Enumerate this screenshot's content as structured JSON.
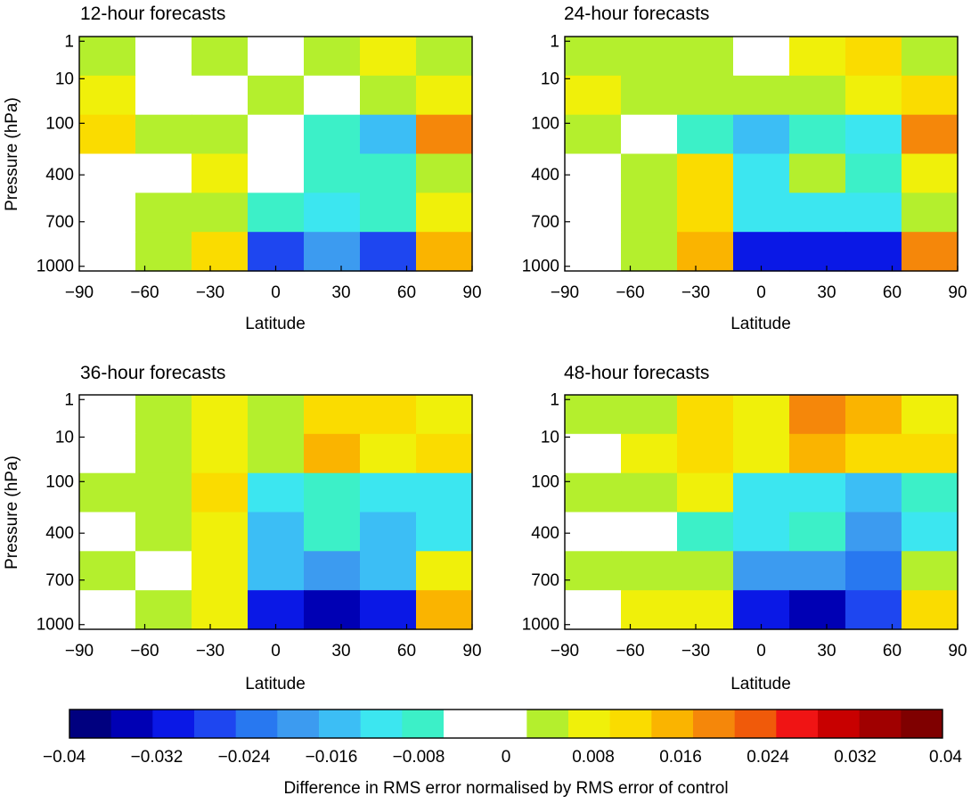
{
  "figure": {
    "colorbar_label": "Difference in RMS error normalised by RMS error of control"
  },
  "chart_data": [
    {
      "type": "heatmap",
      "title": "12-hour forecasts",
      "xlabel": "Latitude",
      "ylabel": "Pressure (hPa)",
      "xlim": [
        -90,
        90
      ],
      "xticks": [
        "−90",
        "−60",
        "−30",
        "0",
        "30",
        "60",
        "90"
      ],
      "yticks": [
        "1",
        "10",
        "100",
        "400",
        "700",
        "1000"
      ],
      "y_levels_hPa": [
        1,
        10,
        100,
        400,
        700,
        1000
      ],
      "field": {
        "latitude": [
          -90,
          -60,
          -30,
          0,
          30,
          60,
          90
        ],
        "pressure_hPa": [
          1,
          10,
          100,
          400,
          700,
          1000
        ],
        "values": [
          [
            0.004,
            0.0,
            0.004,
            0.0,
            0.004,
            0.008,
            0.004
          ],
          [
            0.008,
            0.0,
            0.0,
            0.004,
            0.0,
            0.004,
            0.008
          ],
          [
            0.012,
            0.004,
            0.004,
            -0.004,
            -0.008,
            -0.016,
            0.02
          ],
          [
            0.0,
            0.0,
            0.008,
            -0.004,
            -0.008,
            -0.008,
            0.004
          ],
          [
            0.0,
            0.004,
            0.004,
            -0.008,
            -0.012,
            -0.008,
            0.008
          ],
          [
            0.0,
            0.004,
            0.012,
            -0.028,
            -0.02,
            -0.028,
            0.016
          ]
        ]
      }
    },
    {
      "type": "heatmap",
      "title": "24-hour forecasts",
      "xlabel": "Latitude",
      "ylabel": "",
      "xlim": [
        -90,
        90
      ],
      "xticks": [
        "−90",
        "−60",
        "−30",
        "0",
        "30",
        "60",
        "90"
      ],
      "yticks": [
        "1",
        "10",
        "100",
        "400",
        "700",
        "1000"
      ],
      "y_levels_hPa": [
        1,
        10,
        100,
        400,
        700,
        1000
      ],
      "field": {
        "latitude": [
          -90,
          -60,
          -30,
          0,
          30,
          60,
          90
        ],
        "pressure_hPa": [
          1,
          10,
          100,
          400,
          700,
          1000
        ],
        "values": [
          [
            0.004,
            0.004,
            0.004,
            0.0,
            0.008,
            0.012,
            0.004
          ],
          [
            0.008,
            0.004,
            0.004,
            0.004,
            0.004,
            0.008,
            0.012
          ],
          [
            0.004,
            0.0,
            -0.008,
            -0.016,
            -0.008,
            -0.012,
            0.02
          ],
          [
            0.0,
            0.004,
            0.012,
            -0.012,
            0.004,
            -0.008,
            0.008
          ],
          [
            0.0,
            0.004,
            0.012,
            -0.012,
            -0.012,
            -0.012,
            0.004
          ],
          [
            0.0,
            0.004,
            0.016,
            -0.032,
            -0.032,
            -0.032,
            0.02
          ]
        ]
      }
    },
    {
      "type": "heatmap",
      "title": "36-hour forecasts",
      "xlabel": "Latitude",
      "ylabel": "Pressure (hPa)",
      "xlim": [
        -90,
        90
      ],
      "xticks": [
        "−90",
        "−60",
        "−30",
        "0",
        "30",
        "60",
        "90"
      ],
      "yticks": [
        "1",
        "10",
        "100",
        "400",
        "700",
        "1000"
      ],
      "y_levels_hPa": [
        1,
        10,
        100,
        400,
        700,
        1000
      ],
      "field": {
        "latitude": [
          -90,
          -60,
          -30,
          0,
          30,
          60,
          90
        ],
        "pressure_hPa": [
          1,
          10,
          100,
          400,
          700,
          1000
        ],
        "values": [
          [
            -0.004,
            0.004,
            0.008,
            0.004,
            0.012,
            0.012,
            0.008
          ],
          [
            0.0,
            0.004,
            0.008,
            0.004,
            0.016,
            0.008,
            0.012
          ],
          [
            0.004,
            0.004,
            0.012,
            -0.012,
            -0.008,
            -0.012,
            -0.012
          ],
          [
            0.0,
            0.004,
            0.008,
            -0.016,
            -0.008,
            -0.016,
            -0.012
          ],
          [
            0.004,
            0.0,
            0.008,
            -0.016,
            -0.02,
            -0.016,
            0.008
          ],
          [
            0.0,
            0.004,
            0.008,
            -0.032,
            -0.036,
            -0.032,
            0.016
          ]
        ]
      }
    },
    {
      "type": "heatmap",
      "title": "48-hour forecasts",
      "xlabel": "Latitude",
      "ylabel": "",
      "xlim": [
        -90,
        90
      ],
      "xticks": [
        "−90",
        "−60",
        "−30",
        "0",
        "30",
        "60",
        "90"
      ],
      "yticks": [
        "1",
        "10",
        "100",
        "400",
        "700",
        "1000"
      ],
      "y_levels_hPa": [
        1,
        10,
        100,
        400,
        700,
        1000
      ],
      "field": {
        "latitude": [
          -90,
          -60,
          -30,
          0,
          30,
          60,
          90
        ],
        "pressure_hPa": [
          1,
          10,
          100,
          400,
          700,
          1000
        ],
        "values": [
          [
            0.004,
            0.004,
            0.012,
            0.008,
            0.02,
            0.016,
            0.008
          ],
          [
            0.0,
            0.008,
            0.012,
            0.008,
            0.016,
            0.012,
            0.012
          ],
          [
            0.004,
            0.004,
            0.008,
            -0.012,
            -0.012,
            -0.016,
            -0.008
          ],
          [
            0.0,
            -0.004,
            -0.008,
            -0.012,
            -0.008,
            -0.02,
            -0.012
          ],
          [
            0.004,
            0.004,
            0.004,
            -0.02,
            -0.02,
            -0.024,
            0.004
          ],
          [
            0.0,
            0.008,
            0.008,
            -0.032,
            -0.036,
            -0.028,
            0.012
          ]
        ]
      }
    }
  ],
  "colorbar": {
    "vmin": -0.04,
    "vmax": 0.04,
    "ticks": [
      "−0.04",
      "−0.032",
      "−0.024",
      "−0.016",
      "−0.008",
      "0",
      "0.008",
      "0.016",
      "0.024",
      "0.032",
      "0.04"
    ],
    "colors": [
      "#00007f",
      "#0000b4",
      "#0a18e6",
      "#1e46f0",
      "#2878f0",
      "#3c9bf0",
      "#3cbef5",
      "#3ce6f0",
      "#3cf0c8",
      "#ffffff",
      "#ffffff",
      "#b4ef2d",
      "#f0f00a",
      "#fadc00",
      "#fab400",
      "#f5870a",
      "#f05a0a",
      "#f01414",
      "#c80000",
      "#a00000",
      "#7f0000"
    ]
  }
}
